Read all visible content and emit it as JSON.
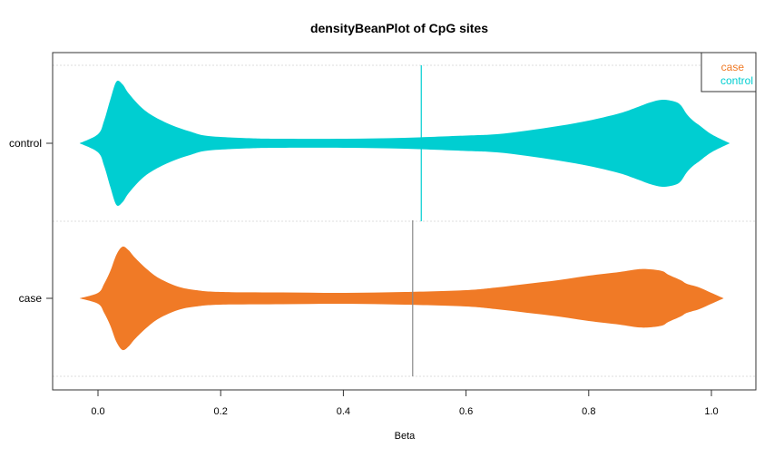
{
  "chart_data": {
    "type": "beanplot",
    "title": "densityBeanPlot of CpG sites",
    "xlabel": "Beta",
    "ylabel": "",
    "xlim": [
      -0.07,
      1.07
    ],
    "xticks": [
      0.0,
      0.2,
      0.4,
      0.6,
      0.8,
      1.0
    ],
    "xtick_labels": [
      "0.0",
      "0.2",
      "0.4",
      "0.6",
      "0.8",
      "1.0"
    ],
    "grid": "dotted horizontal lines between groups",
    "legend": {
      "placement": "top-right",
      "entries": [
        "case",
        "control"
      ]
    },
    "series": [
      {
        "name": "control",
        "color": "#00CED1",
        "median": 0.527,
        "density": {
          "x": [
            -0.03,
            0.0,
            0.01,
            0.02,
            0.03,
            0.04,
            0.05,
            0.07,
            0.09,
            0.12,
            0.15,
            0.18,
            0.25,
            0.3,
            0.4,
            0.5,
            0.6,
            0.65,
            0.7,
            0.75,
            0.8,
            0.85,
            0.88,
            0.9,
            0.92,
            0.94,
            0.95,
            0.96,
            0.97,
            0.98,
            1.0,
            1.03
          ],
          "y": [
            0,
            1.0,
            2.5,
            4.8,
            6.8,
            6.5,
            5.5,
            4.0,
            3.0,
            2.0,
            1.3,
            0.8,
            0.55,
            0.5,
            0.5,
            0.6,
            0.85,
            1.0,
            1.4,
            1.9,
            2.5,
            3.3,
            4.0,
            4.5,
            4.8,
            4.6,
            4.2,
            3.2,
            2.5,
            2.0,
            1.0,
            0
          ]
        }
      },
      {
        "name": "case",
        "color": "#F07A26",
        "median": 0.513,
        "density": {
          "x": [
            -0.03,
            0.0,
            0.01,
            0.02,
            0.03,
            0.04,
            0.05,
            0.06,
            0.08,
            0.1,
            0.13,
            0.16,
            0.2,
            0.3,
            0.4,
            0.5,
            0.6,
            0.65,
            0.7,
            0.75,
            0.8,
            0.85,
            0.88,
            0.9,
            0.92,
            0.93,
            0.95,
            0.96,
            0.98,
            1.0,
            1.02
          ],
          "y": [
            0,
            0.6,
            1.6,
            3.0,
            4.8,
            5.7,
            5.3,
            4.5,
            3.2,
            2.2,
            1.3,
            0.9,
            0.7,
            0.65,
            0.6,
            0.7,
            0.9,
            1.2,
            1.6,
            2.0,
            2.5,
            2.9,
            3.2,
            3.2,
            3.0,
            2.6,
            2.0,
            1.6,
            1.2,
            0.6,
            0
          ]
        }
      }
    ]
  }
}
